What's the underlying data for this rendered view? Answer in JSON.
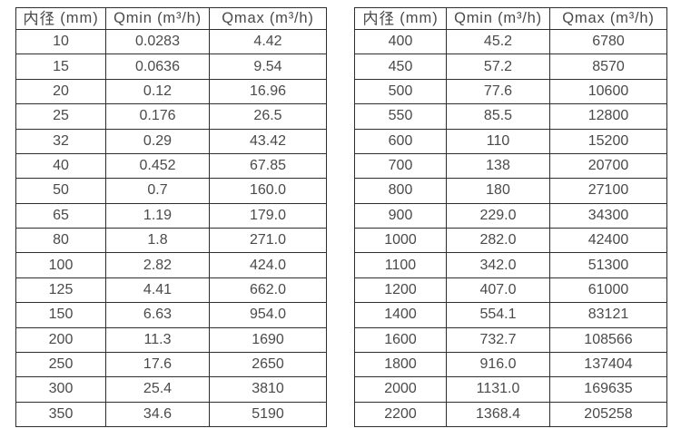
{
  "colors": {
    "border": "#2e2e2e",
    "text": "#4a4a4a",
    "background": "#ffffff"
  },
  "tables": [
    {
      "headers": {
        "diameter": "内径（mm）",
        "qmin": "Qmin（m³/h）",
        "qmax": "Qmax（m³/h）"
      },
      "rows": [
        [
          "10",
          "0.0283",
          "4.42"
        ],
        [
          "15",
          "0.0636",
          "9.54"
        ],
        [
          "20",
          "0.12",
          "16.96"
        ],
        [
          "25",
          "0.176",
          "26.5"
        ],
        [
          "32",
          "0.29",
          "43.42"
        ],
        [
          "40",
          "0.452",
          "67.85"
        ],
        [
          "50",
          "0.7",
          "160.0"
        ],
        [
          "65",
          "1.19",
          "179.0"
        ],
        [
          "80",
          "1.8",
          "271.0"
        ],
        [
          "100",
          "2.82",
          "424.0"
        ],
        [
          "125",
          "4.41",
          "662.0"
        ],
        [
          "150",
          "6.63",
          "954.0"
        ],
        [
          "200",
          "11.3",
          "1690"
        ],
        [
          "250",
          "17.6",
          "2650"
        ],
        [
          "300",
          "25.4",
          "3810"
        ],
        [
          "350",
          "34.6",
          "5190"
        ]
      ]
    },
    {
      "headers": {
        "diameter": "内径（mm）",
        "qmin": "Qmin（m³/h）",
        "qmax": "Qmax（m³/h）"
      },
      "rows": [
        [
          "400",
          "45.2",
          "6780"
        ],
        [
          "450",
          "57.2",
          "8570"
        ],
        [
          "500",
          "77.6",
          "10600"
        ],
        [
          "550",
          "85.5",
          "12800"
        ],
        [
          "600",
          "110",
          "15200"
        ],
        [
          "700",
          "138",
          "20700"
        ],
        [
          "800",
          "180",
          "27100"
        ],
        [
          "900",
          "229.0",
          "34300"
        ],
        [
          "1000",
          "282.0",
          "42400"
        ],
        [
          "1100",
          "342.0",
          "51300"
        ],
        [
          "1200",
          "407.0",
          "61000"
        ],
        [
          "1400",
          "554.1",
          "83121"
        ],
        [
          "1600",
          "732.7",
          "108566"
        ],
        [
          "1800",
          "916.0",
          "137404"
        ],
        [
          "2000",
          "1131.0",
          "169635"
        ],
        [
          "2200",
          "1368.4",
          "205258"
        ]
      ]
    }
  ]
}
